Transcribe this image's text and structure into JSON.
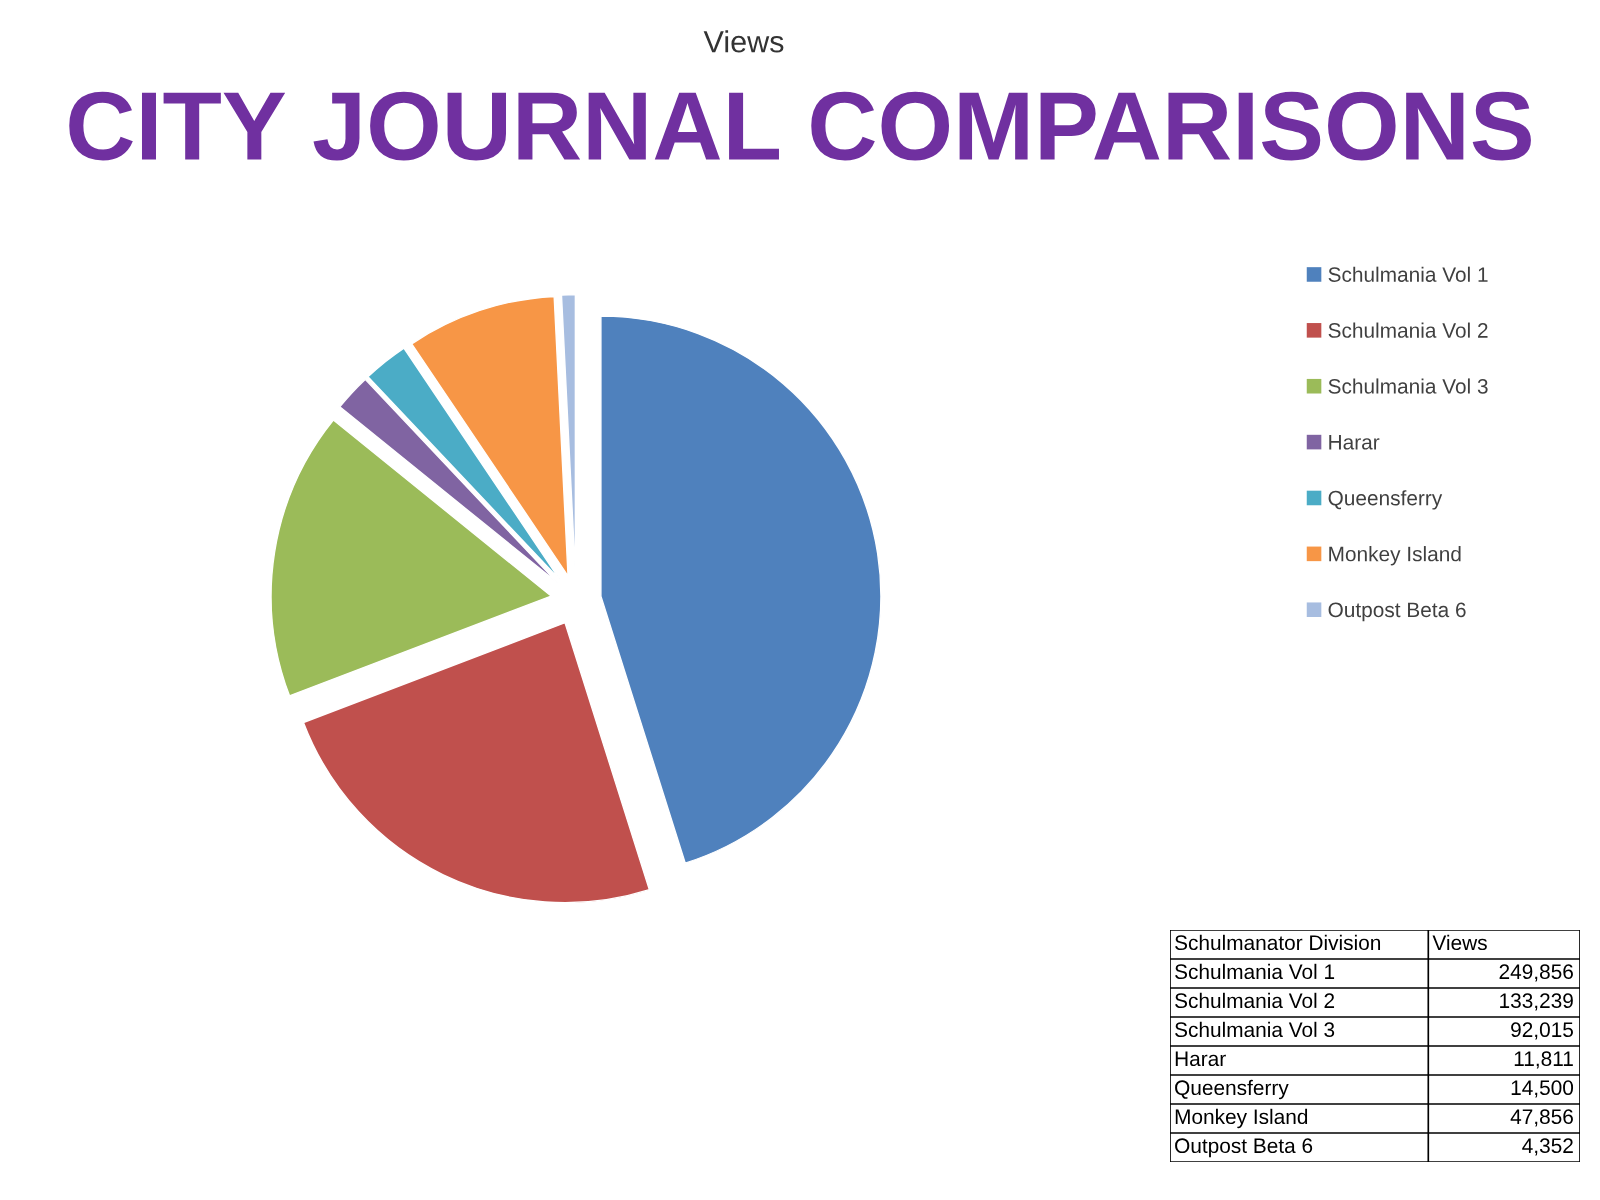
{
  "chart_data": [
    {
      "type": "pie",
      "title": "Views",
      "subtitle": "CITY JOURNAL COMPARISONS",
      "categories": [
        "Schulmania Vol 1",
        "Schulmania Vol 2",
        "Schulmania Vol 3",
        "Harar",
        "Queensferry",
        "Monkey Island",
        "Outpost Beta 6"
      ],
      "values": [
        45.13,
        24.07,
        16.62,
        2.13,
        2.62,
        8.64,
        0.79
      ],
      "colors": [
        "#4f81bd",
        "#c0504d",
        "#9bbb59",
        "#8064a2",
        "#4bacc6",
        "#f79646",
        "#a7bde0"
      ],
      "legend": "right"
    },
    {
      "type": "other",
      "categories": [
        "Schulmania Vol 1",
        "Schulmania Vol 2",
        "Schulmania Vol 3",
        "Harar",
        "Queensferry",
        "Monkey Island",
        "Outpost Beta 6"
      ],
      "values": [
        249856,
        133239,
        92015,
        11811,
        14500,
        47856,
        4352
      ],
      "value_labels": [
        "249,856",
        "133,239",
        "92,015",
        "11,811",
        "14,500",
        "47,856",
        "4,352"
      ],
      "annotations": [
        "Schulmanator Division",
        "Views"
      ]
    }
  ]
}
